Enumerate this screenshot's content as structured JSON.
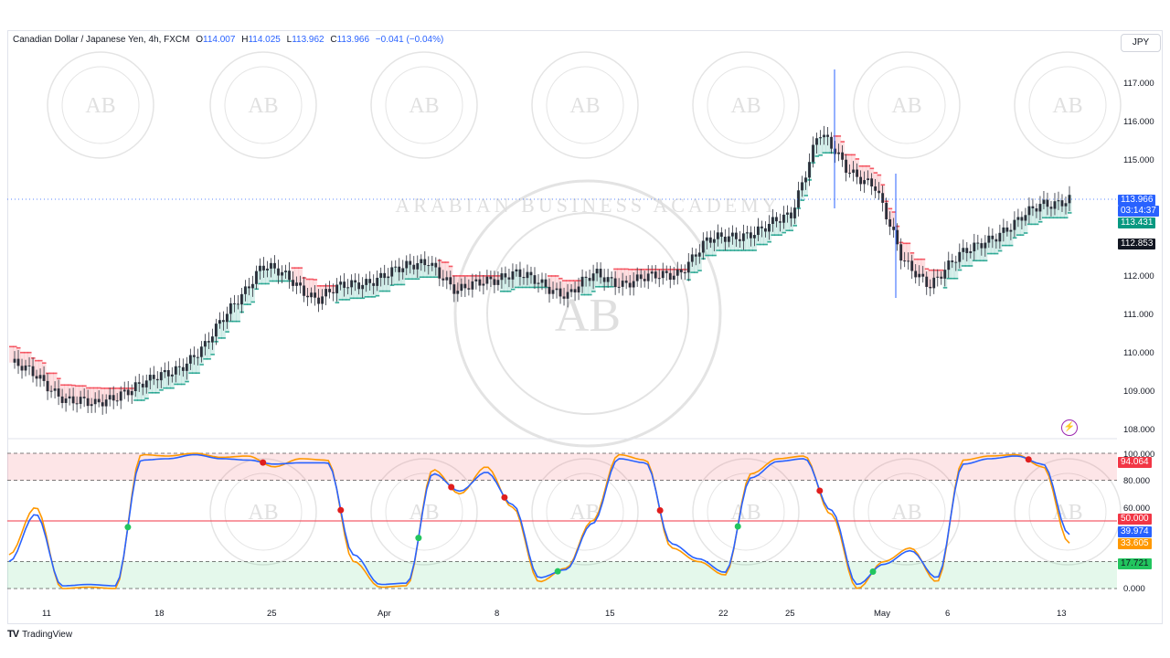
{
  "header": {
    "symbol": "Canadian Dollar / Japanese Yen, 4h, FXCM",
    "open_label": "O",
    "open": "114.007",
    "high_label": "H",
    "high": "114.025",
    "low_label": "L",
    "low": "113.962",
    "close_label": "C",
    "close": "113.966",
    "change": "−0.041 (−0.04%)",
    "currency": "JPY"
  },
  "price_axis_labels": [
    "117.000",
    "116.000",
    "115.000",
    "112.000",
    "111.000",
    "110.000",
    "109.000",
    "108.000"
  ],
  "price_tags": {
    "last_price": "113.966",
    "countdown": "03:14:37",
    "green_level": "113.431",
    "black_level": "112.853",
    "last_color": "#2962ff",
    "green_color": "#089981",
    "black_color": "#131722"
  },
  "osc_axis_labels": [
    "100.000",
    "80.000",
    "60.000",
    "0.000"
  ],
  "osc_tags": {
    "v1": "94.064",
    "v1_color": "#f23645",
    "v2": "50.000",
    "v2_color": "#f23645",
    "v3": "39.974",
    "v3_color": "#2962ff",
    "v4": "33.605",
    "v4_color": "#ff9800",
    "v5": "17.721",
    "v5_color": "#22c55e"
  },
  "time_axis": [
    "11",
    "18",
    "25",
    "Apr",
    "8",
    "15",
    "22",
    "25",
    "May",
    "6",
    "13"
  ],
  "watermark": {
    "badge": "AB",
    "ring_text": "ARABIAN BUSINESS ACADEMY"
  },
  "branding": {
    "logo": "TV",
    "name": "TradingView"
  },
  "chart_data": [
    {
      "type": "line",
      "title": "Canadian Dollar / Japanese Yen, 4h, FXCM",
      "xlabel": "",
      "ylabel": "",
      "ylim": [
        108,
        117.5
      ],
      "x": [
        "11",
        "",
        "",
        "",
        "",
        "18",
        "",
        "",
        "",
        "",
        "25",
        "",
        "",
        "Apr",
        "",
        "",
        "8",
        "",
        "",
        "",
        "",
        "15",
        "",
        "",
        "",
        "",
        "22",
        "",
        "25",
        "",
        "",
        "May",
        "",
        "6",
        "",
        "",
        "",
        "",
        "13"
      ],
      "series": [
        {
          "values": [
            109.9,
            109.5,
            109.0,
            108.8,
            109.2,
            109.4,
            109.8,
            110.3,
            111.4,
            112.3,
            112.0,
            111.5,
            111.8,
            112.0,
            112.2,
            112.5,
            111.6,
            112.0,
            112.1,
            111.9,
            111.6,
            112.1,
            111.9,
            112.0,
            112.2,
            112.9,
            113.1,
            113.2,
            113.6,
            115.7,
            114.7,
            114.4,
            112.4,
            111.9,
            112.5,
            113.0,
            113.3,
            113.9,
            113.97
          ]
        }
      ],
      "colors": {
        "up": "#089981",
        "down": "#f23645",
        "wick": "#2a2e39"
      }
    },
    {
      "type": "line",
      "title": "",
      "ylim": [
        0,
        100
      ],
      "series": [
        {
          "values": [
            25,
            60,
            0,
            1,
            0,
            99,
            98,
            100,
            97,
            98,
            90,
            96,
            95,
            20,
            1,
            2,
            88,
            70,
            90,
            60,
            5,
            15,
            50,
            99,
            95,
            30,
            20,
            10,
            85,
            96,
            98,
            55,
            0,
            20,
            30,
            5,
            95,
            98,
            99,
            90,
            33.6
          ]
        },
        {
          "values": [
            20,
            55,
            2,
            3,
            2,
            95,
            96,
            99,
            96,
            95,
            92,
            93,
            93,
            25,
            3,
            4,
            85,
            72,
            86,
            62,
            8,
            14,
            48,
            96,
            93,
            33,
            22,
            12,
            82,
            94,
            96,
            58,
            3,
            18,
            28,
            8,
            92,
            96,
            98,
            92,
            39.97
          ]
        }
      ],
      "levels": [
        100,
        80,
        50,
        20,
        0
      ],
      "colors": {
        "k": "#ff9800",
        "d": "#2962ff",
        "mid": "#f23645",
        "cross_up": "#22c55e",
        "cross_down": "#e01e1e"
      }
    }
  ]
}
